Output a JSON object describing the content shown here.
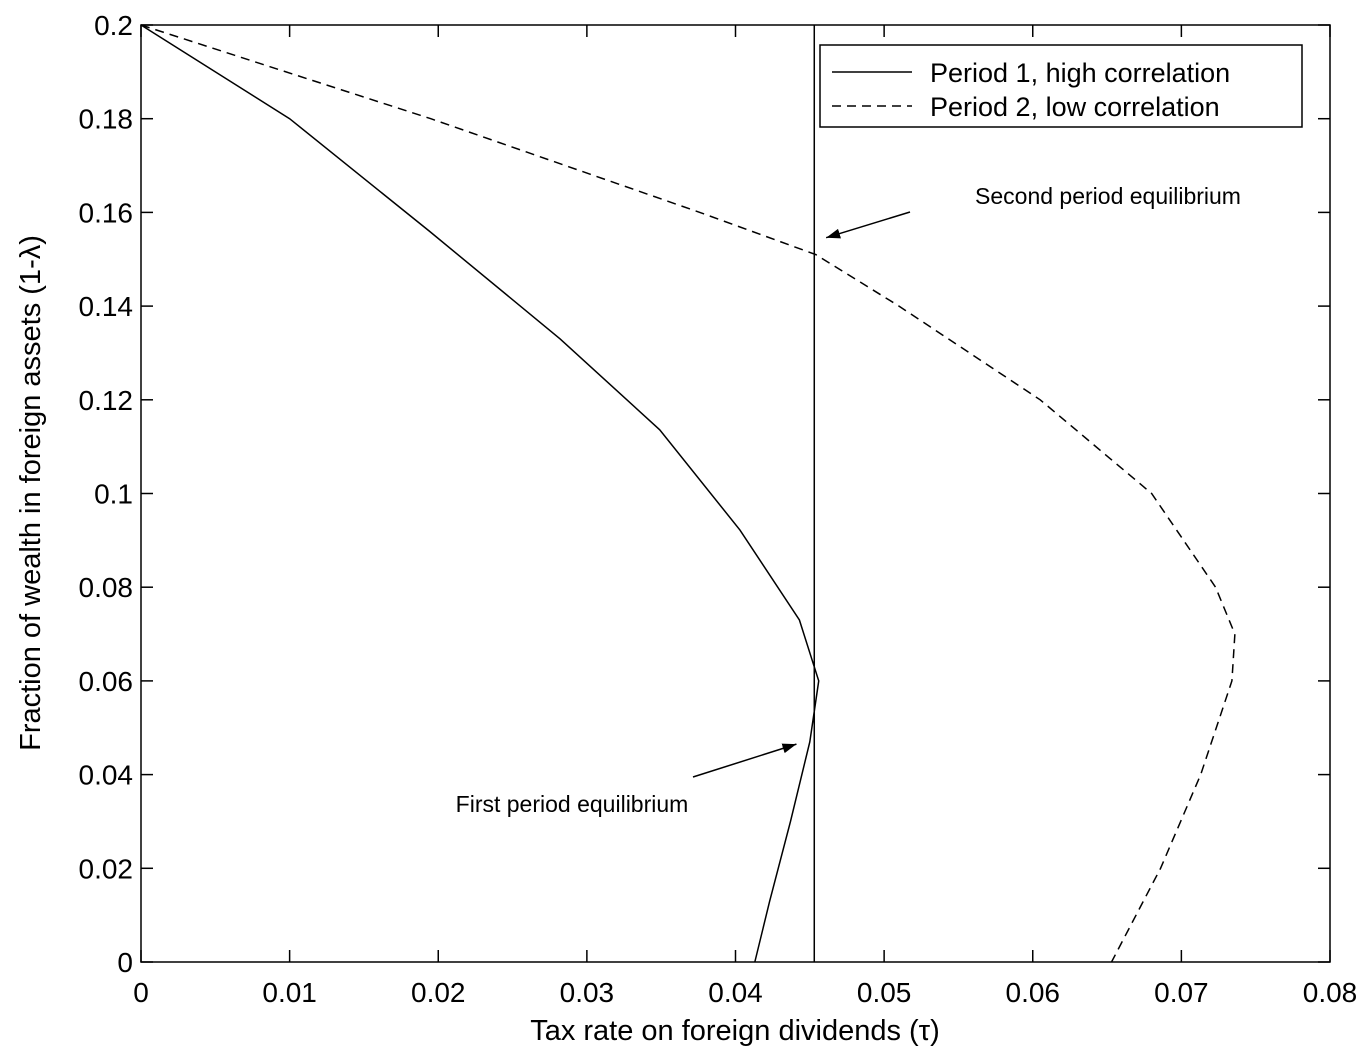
{
  "chart_data": {
    "type": "line",
    "xlabel": "Tax rate on foreign dividends (τ)",
    "ylabel": "Fraction of wealth in foreign assets (1-λ)",
    "xlim": [
      0,
      0.08
    ],
    "ylim": [
      0,
      0.2
    ],
    "xticks": [
      0,
      0.01,
      0.02,
      0.03,
      0.04,
      0.05,
      0.06,
      0.07,
      0.08
    ],
    "yticks": [
      0,
      0.02,
      0.04,
      0.06,
      0.08,
      0.1,
      0.12,
      0.14,
      0.16,
      0.18,
      0.2
    ],
    "legend": "upper right",
    "series": [
      {
        "name": "Period 1, high correlation",
        "color": "#000000",
        "dash": "solid",
        "x": [
          0,
          0.01,
          0.0194,
          0.0282,
          0.0349,
          0.0403,
          0.0443,
          0.0456,
          0.045,
          0.0437,
          0.0423,
          0.0413
        ],
        "y": [
          0.2,
          0.18,
          0.156,
          0.133,
          0.1136,
          0.0922,
          0.073,
          0.06,
          0.047,
          0.03,
          0.013,
          0
        ]
      },
      {
        "name": "Period 2, low correlation",
        "color": "#000000",
        "dash": "dashed",
        "x": [
          0,
          0.0195,
          0.0376,
          0.0454,
          0.051,
          0.0605,
          0.068,
          0.0723,
          0.0736,
          0.0734,
          0.0713,
          0.0686,
          0.0653
        ],
        "y": [
          0.2,
          0.18,
          0.16,
          0.151,
          0.14,
          0.12,
          0.1,
          0.08,
          0.07,
          0.06,
          0.04,
          0.02,
          0
        ]
      }
    ],
    "vline": 0.0453,
    "annotations": [
      {
        "text": "Second period equilibrium",
        "x": 0.0461,
        "y": 0.1546
      },
      {
        "text": "First period equilibrium",
        "x": 0.0441,
        "y": 0.0465
      }
    ]
  }
}
